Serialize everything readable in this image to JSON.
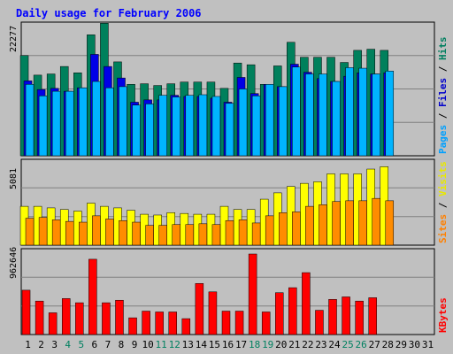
{
  "chart_data": {
    "type": "bar",
    "title": "Daily usage for February 2006",
    "days": [
      "1",
      "2",
      "3",
      "4",
      "5",
      "6",
      "7",
      "8",
      "9",
      "10",
      "11",
      "12",
      "13",
      "14",
      "15",
      "16",
      "17",
      "18",
      "19",
      "20",
      "21",
      "22",
      "23",
      "24",
      "25",
      "26",
      "27",
      "28",
      "29",
      "30",
      "31"
    ],
    "weekend_days": [
      "4",
      "5",
      "11",
      "12",
      "18",
      "19",
      "25",
      "26"
    ],
    "panels": [
      {
        "id": "pages-files-hits",
        "max_label": "22277",
        "ymax": 22277,
        "axis_labels": [
          {
            "text": "Pages",
            "color": "#00a0ff"
          },
          {
            "text": "Files",
            "color": "#0000cc"
          },
          {
            "text": "Hits",
            "color": "#007f5f"
          }
        ],
        "series": [
          {
            "name": "Hits",
            "color": "#00805c",
            "values": [
              17400,
              14000,
              14200,
              15500,
              14400,
              21000,
              23000,
              16300,
              12400,
              12500,
              12200,
              12500,
              12800,
              12800,
              12800,
              11700,
              16100,
              15800,
              12400,
              15600,
              19700,
              17100,
              17100,
              17100,
              16200,
              18300,
              18500,
              18300,
              null,
              null,
              null
            ]
          },
          {
            "name": "Files",
            "color": "#0000e6",
            "values": [
              13000,
              11500,
              11700,
              11200,
              11800,
              17600,
              15500,
              13500,
              9300,
              9700,
              9700,
              10500,
              10300,
              10300,
              10000,
              9300,
              13600,
              10800,
              12400,
              12000,
              15900,
              14500,
              13400,
              12900,
              13800,
              14400,
              14200,
              14400,
              null,
              null,
              null
            ]
          },
          {
            "name": "Pages",
            "color": "#00b4ff",
            "values": [
              12400,
              10400,
              11200,
              11200,
              11800,
              12900,
              11800,
              12000,
              8800,
              9000,
              10500,
              10200,
              10500,
              10600,
              10300,
              9100,
              11600,
              10400,
              12400,
              12000,
              15400,
              14200,
              14200,
              12900,
              15300,
              15200,
              14200,
              14700,
              null,
              null,
              null
            ]
          }
        ]
      },
      {
        "id": "visits-sites",
        "max_label": "5081",
        "ymax": 5081,
        "axis_labels": [
          {
            "text": "Sites",
            "color": "#ff8000"
          },
          {
            "text": "Visits",
            "color": "#e8e800"
          }
        ],
        "series": [
          {
            "name": "Visits",
            "color": "#ffff00",
            "values": [
              2450,
              2450,
              2350,
              2250,
              2150,
              2650,
              2450,
              2350,
              2200,
              1950,
              1900,
              2050,
              2000,
              1950,
              1950,
              2450,
              2250,
              2250,
              2900,
              3300,
              3700,
              3900,
              4000,
              4500,
              4500,
              4500,
              4800,
              4950,
              null,
              null,
              null
            ]
          },
          {
            "name": "Sites",
            "color": "#ff8c00",
            "values": [
              1700,
              1750,
              1600,
              1500,
              1450,
              1850,
              1650,
              1550,
              1450,
              1250,
              1250,
              1300,
              1300,
              1350,
              1300,
              1550,
              1600,
              1400,
              1850,
              2050,
              2100,
              2450,
              2550,
              2750,
              2800,
              2800,
              2950,
              2800,
              null,
              null,
              null
            ]
          }
        ]
      },
      {
        "id": "kbytes",
        "max_label": "962646",
        "ymax": 962646,
        "axis_labels": [
          {
            "text": "KBytes",
            "color": "#ff0000"
          }
        ],
        "series": [
          {
            "name": "KBytes",
            "color": "#ff0000",
            "values": [
              530000,
              400000,
              260000,
              430000,
              380000,
              900000,
              380000,
              410000,
              200000,
              280000,
              270000,
              270000,
              190000,
              610000,
              510000,
              280000,
              280000,
              962646,
              270000,
              500000,
              560000,
              740000,
              290000,
              420000,
              450000,
              400000,
              440000,
              null,
              null,
              null,
              null
            ]
          }
        ]
      }
    ]
  }
}
